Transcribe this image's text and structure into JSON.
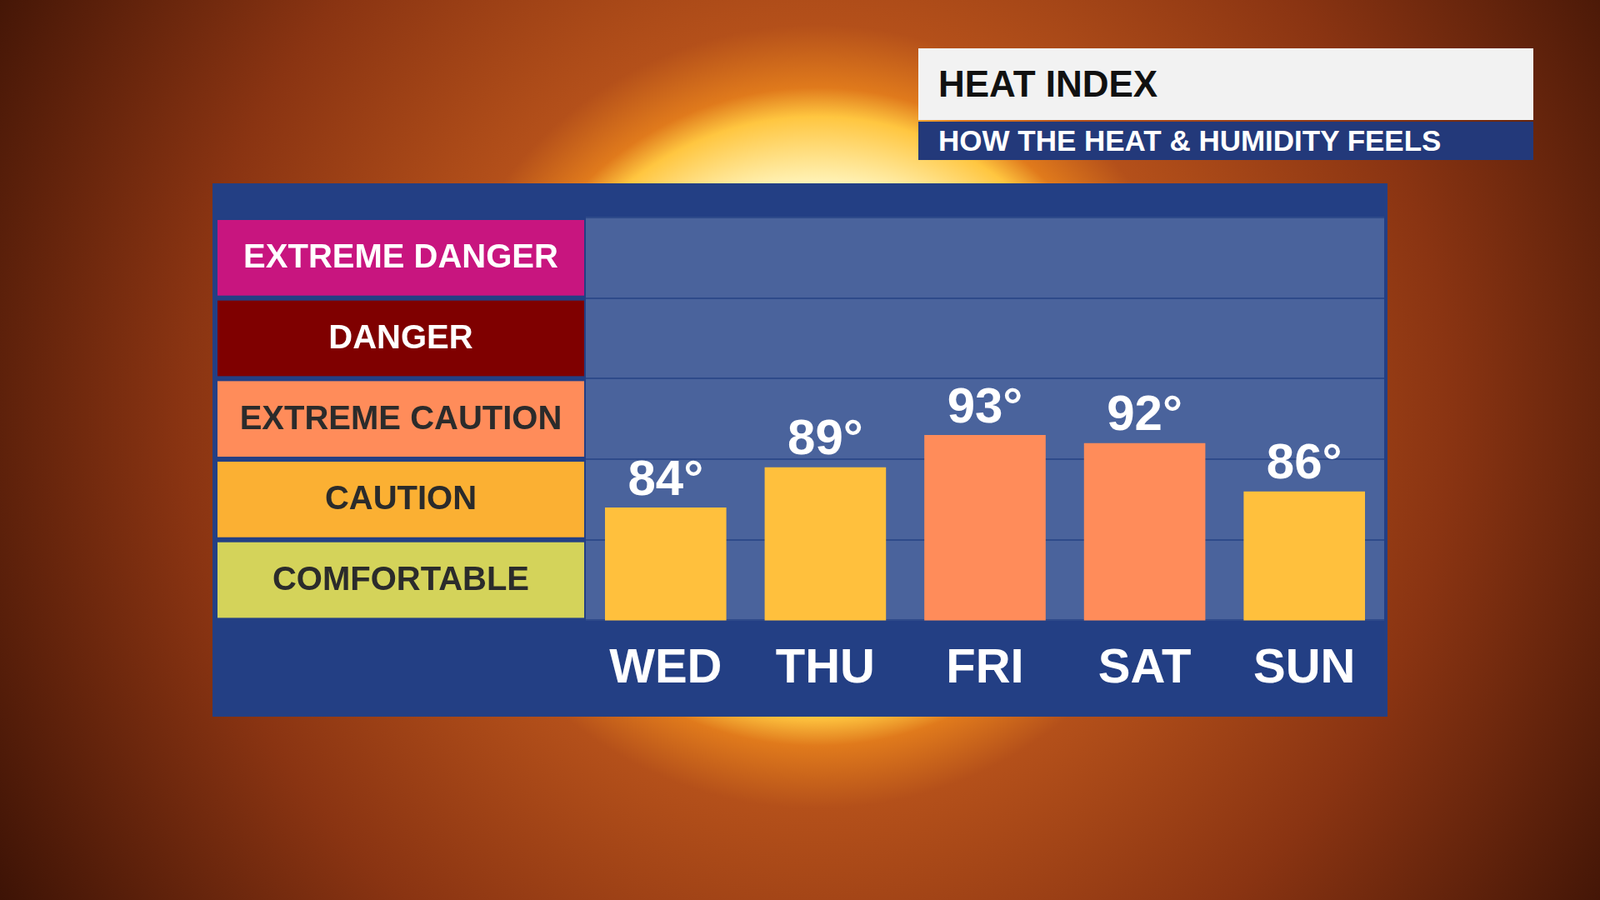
{
  "chart_data": {
    "type": "bar",
    "title": "HEAT INDEX",
    "subtitle": "HOW THE HEAT & HUMIDITY FEELS",
    "categories": [
      "WED",
      "THU",
      "FRI",
      "SAT",
      "SUN"
    ],
    "values": [
      84,
      89,
      93,
      92,
      86
    ],
    "value_labels": [
      "84°",
      "89°",
      "93°",
      "92°",
      "86°"
    ],
    "colors": [
      "#ffc03d",
      "#ffc03d",
      "#ff8c5a",
      "#ff8c5a",
      "#ffc03d"
    ],
    "ylim": [
      70,
      120
    ],
    "yticks": [
      70,
      80,
      90,
      100,
      110,
      120
    ],
    "grid": true,
    "data_labels": true,
    "tick_labels": "x",
    "bands": [
      {
        "label": "COMFORTABLE",
        "from": 70,
        "to": 80,
        "color": "#d4d35a"
      },
      {
        "label": "CAUTION",
        "from": 80,
        "to": 90,
        "color": "#fbb033"
      },
      {
        "label": "EXTREME CAUTION",
        "from": 90,
        "to": 100,
        "color": "#ff8c5a"
      },
      {
        "label": "DANGER",
        "from": 100,
        "to": 110,
        "color": "#7f0000"
      },
      {
        "label": "EXTREME DANGER",
        "from": 110,
        "to": 120,
        "color": "#c8157f"
      }
    ]
  }
}
